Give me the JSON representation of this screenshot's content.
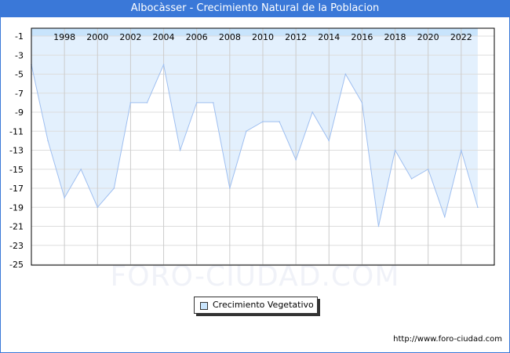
{
  "title": "Albocàsser - Crecimiento Natural de la Poblacion",
  "watermark": "FORO-CIUDAD.COM",
  "url": "http://www.foro-ciudad.com",
  "colors": {
    "title_bar": "#3a78d8",
    "fill": "#e3f0fd",
    "fill_top": "#c8e4fc",
    "line": "#9fbff0"
  },
  "chart_data": {
    "type": "area",
    "title": "Albocàsser - Crecimiento Natural de la Poblacion",
    "xlabel": "",
    "ylabel": "",
    "x": [
      1996,
      1997,
      1998,
      1999,
      2000,
      2001,
      2002,
      2003,
      2004,
      2005,
      2006,
      2007,
      2008,
      2009,
      2010,
      2011,
      2012,
      2013,
      2014,
      2015,
      2016,
      2017,
      2018,
      2019,
      2020,
      2021,
      2022,
      2023
    ],
    "series": [
      {
        "name": "Crecimiento Vegetativo",
        "values": [
          -4,
          -12,
          -18,
          -15,
          -19,
          -17,
          -8,
          -8,
          -4,
          -13,
          -8,
          -8,
          -17,
          -11,
          -10,
          -10,
          -14,
          -9,
          -12,
          -5,
          -8,
          -21,
          -13,
          -16,
          -15,
          -20,
          -13,
          -19
        ]
      }
    ],
    "xticks": [
      "1998",
      "2000",
      "2002",
      "2004",
      "2006",
      "2008",
      "2010",
      "2012",
      "2014",
      "2016",
      "2018",
      "2020",
      "2022"
    ],
    "yticks": [
      "-1",
      "-3",
      "-5",
      "-7",
      "-9",
      "-11",
      "-13",
      "-15",
      "-17",
      "-19",
      "-21",
      "-23",
      "-25"
    ],
    "ylim": [
      -25,
      -0.2
    ],
    "grid": true,
    "legend_position": "bottom-center"
  }
}
